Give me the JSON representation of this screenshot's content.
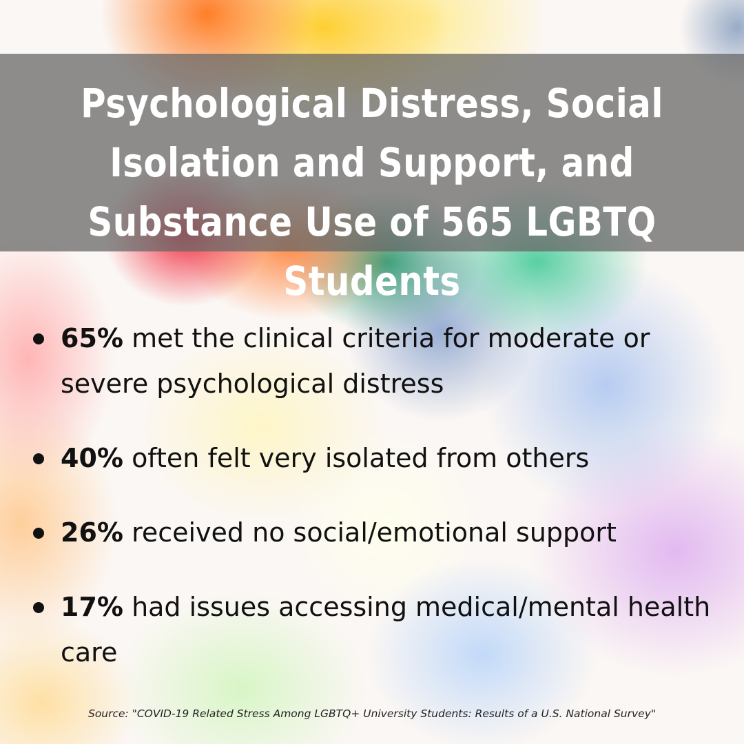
{
  "title": "Psychological Distress, Social Isolation and Support, and Substance Use of 565 LGBTQ Students",
  "stats": [
    {
      "percent": "65%",
      "text": "met the clinical criteria for moderate or severe psychological distress"
    },
    {
      "percent": "40%",
      "text": "often felt very isolated from others"
    },
    {
      "percent": "26%",
      "text": "received no social/emotional support"
    },
    {
      "percent": "17%",
      "text": "had issues accessing medical/mental health care"
    }
  ],
  "source": "Source: \"COVID-19 Related Stress Among LGBTQ+ University Students: Results of a U.S. National Survey\"",
  "colors": {
    "title_band": "#666666",
    "title_text": "#ffffff",
    "body_text": "#111111"
  }
}
